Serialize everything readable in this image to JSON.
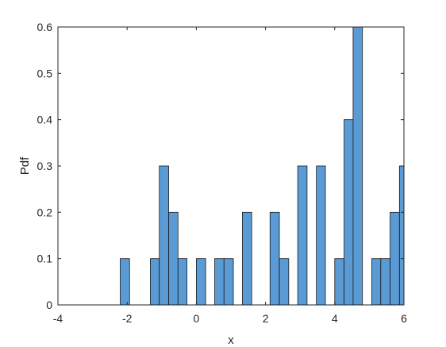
{
  "chart_data": {
    "type": "bar",
    "title": "",
    "xlabel": "x",
    "ylabel": "Pdf",
    "xlim": [
      -4,
      6
    ],
    "ylim": [
      0,
      0.6
    ],
    "xticks": [
      "-4",
      "-2",
      "0",
      "2",
      "4",
      "6"
    ],
    "yticks": [
      "0",
      "0.1",
      "0.2",
      "0.3",
      "0.4",
      "0.5",
      "0.6"
    ],
    "grid": false,
    "bar_color": "#5B9BD5",
    "edge_color": "#1a1a1a",
    "bin_width": 0.27,
    "bins": [
      {
        "x0": -2.2,
        "x1": -1.93,
        "value": 0.1
      },
      {
        "x0": -1.33,
        "x1": -1.07,
        "value": 0.1
      },
      {
        "x0": -1.07,
        "x1": -0.8,
        "value": 0.3
      },
      {
        "x0": -0.8,
        "x1": -0.53,
        "value": 0.2
      },
      {
        "x0": -0.53,
        "x1": -0.27,
        "value": 0.1
      },
      {
        "x0": 0.0,
        "x1": 0.27,
        "value": 0.1
      },
      {
        "x0": 0.53,
        "x1": 0.8,
        "value": 0.1
      },
      {
        "x0": 0.8,
        "x1": 1.07,
        "value": 0.1
      },
      {
        "x0": 1.33,
        "x1": 1.6,
        "value": 0.2
      },
      {
        "x0": 2.13,
        "x1": 2.4,
        "value": 0.2
      },
      {
        "x0": 2.4,
        "x1": 2.67,
        "value": 0.1
      },
      {
        "x0": 2.93,
        "x1": 3.2,
        "value": 0.3
      },
      {
        "x0": 3.47,
        "x1": 3.73,
        "value": 0.3
      },
      {
        "x0": 4.0,
        "x1": 4.27,
        "value": 0.1
      },
      {
        "x0": 4.27,
        "x1": 4.53,
        "value": 0.4
      },
      {
        "x0": 4.53,
        "x1": 4.8,
        "value": 0.6
      },
      {
        "x0": 5.07,
        "x1": 5.33,
        "value": 0.1
      },
      {
        "x0": 5.33,
        "x1": 5.6,
        "value": 0.1
      },
      {
        "x0": 5.6,
        "x1": 5.87,
        "value": 0.2
      },
      {
        "x0": 5.87,
        "x1": 6.0,
        "value": 0.3
      }
    ]
  }
}
